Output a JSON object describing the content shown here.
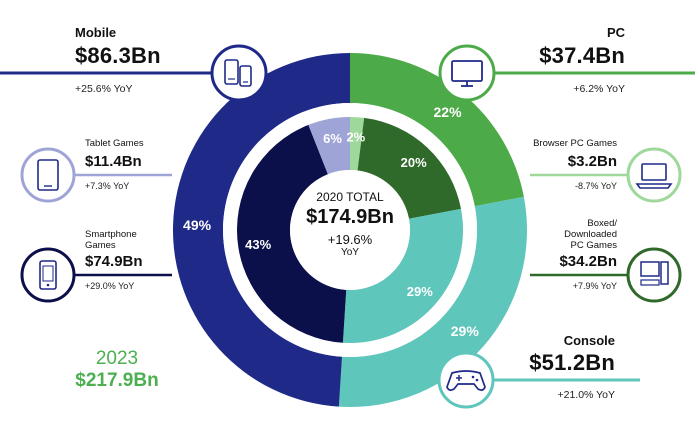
{
  "colors": {
    "mobile": "#1f2a88",
    "smartphone": "#0b0f4a",
    "tablet": "#9fa4d6",
    "pc": "#4caa48",
    "browser_pc": "#9fd89b",
    "boxed_pc": "#2f6a2a",
    "console": "#5ec6bb",
    "console_inner": "#5ec6bb",
    "green_text": "#4caf50"
  },
  "center": {
    "title": "2020 TOTAL",
    "value": "$174.9Bn",
    "yoy": "+19.6%",
    "yoy_label": "YoY"
  },
  "forecast": {
    "year": "2023",
    "value": "$217.9Bn"
  },
  "labels": {
    "mobile": {
      "name": "Mobile",
      "value": "$86.3Bn",
      "yoy": "+25.6% YoY"
    },
    "tablet": {
      "name": "Tablet Games",
      "value": "$11.4Bn",
      "yoy": "+7.3% YoY"
    },
    "smartphone": {
      "name_line1": "Smartphone",
      "name_line2": "Games",
      "value": "$74.9Bn",
      "yoy": "+29.0% YoY"
    },
    "pc": {
      "name": "PC",
      "value": "$37.4Bn",
      "yoy": "+6.2% YoY"
    },
    "browser": {
      "name": "Browser PC Games",
      "value": "$3.2Bn",
      "yoy": "-8.7% YoY"
    },
    "boxed": {
      "name_line1": "Boxed/",
      "name_line2": "Downloaded",
      "name_line3": "PC Games",
      "value": "$34.2Bn",
      "yoy": "+7.9% YoY"
    },
    "console": {
      "name": "Console",
      "value": "$51.2Bn",
      "yoy": "+21.0% YoY"
    }
  },
  "icons": {
    "mobile": "mobile-devices-icon",
    "tablet": "tablet-icon",
    "smartphone": "smartphone-icon",
    "pc": "monitor-icon",
    "browser": "laptop-icon",
    "boxed": "desktop-tower-icon",
    "console": "gamepad-icon"
  },
  "chart_data": {
    "type": "pie",
    "title": "2020 TOTAL $174.9Bn",
    "outer_ring": [
      {
        "name": "PC",
        "value": 22,
        "value_text": "22%",
        "color": "#4caa48"
      },
      {
        "name": "Console",
        "value": 29,
        "value_text": "29%",
        "color": "#5ec6bb"
      },
      {
        "name": "Mobile",
        "value": 49,
        "value_text": "49%",
        "color": "#1f2a88"
      }
    ],
    "inner_ring": [
      {
        "name": "Browser PC Games",
        "value": 2,
        "value_text": "2%",
        "color": "#9fd89b"
      },
      {
        "name": "Boxed/Downloaded PC Games",
        "value": 20,
        "value_text": "20%",
        "color": "#2f6a2a"
      },
      {
        "name": "Console",
        "value": 29,
        "value_text": "29%",
        "color": "#5ec6bb"
      },
      {
        "name": "Smartphone Games",
        "value": 43,
        "value_text": "43%",
        "color": "#0b0f4a"
      },
      {
        "name": "Tablet Games",
        "value": 6,
        "value_text": "6%",
        "color": "#9fa4d6"
      }
    ]
  }
}
